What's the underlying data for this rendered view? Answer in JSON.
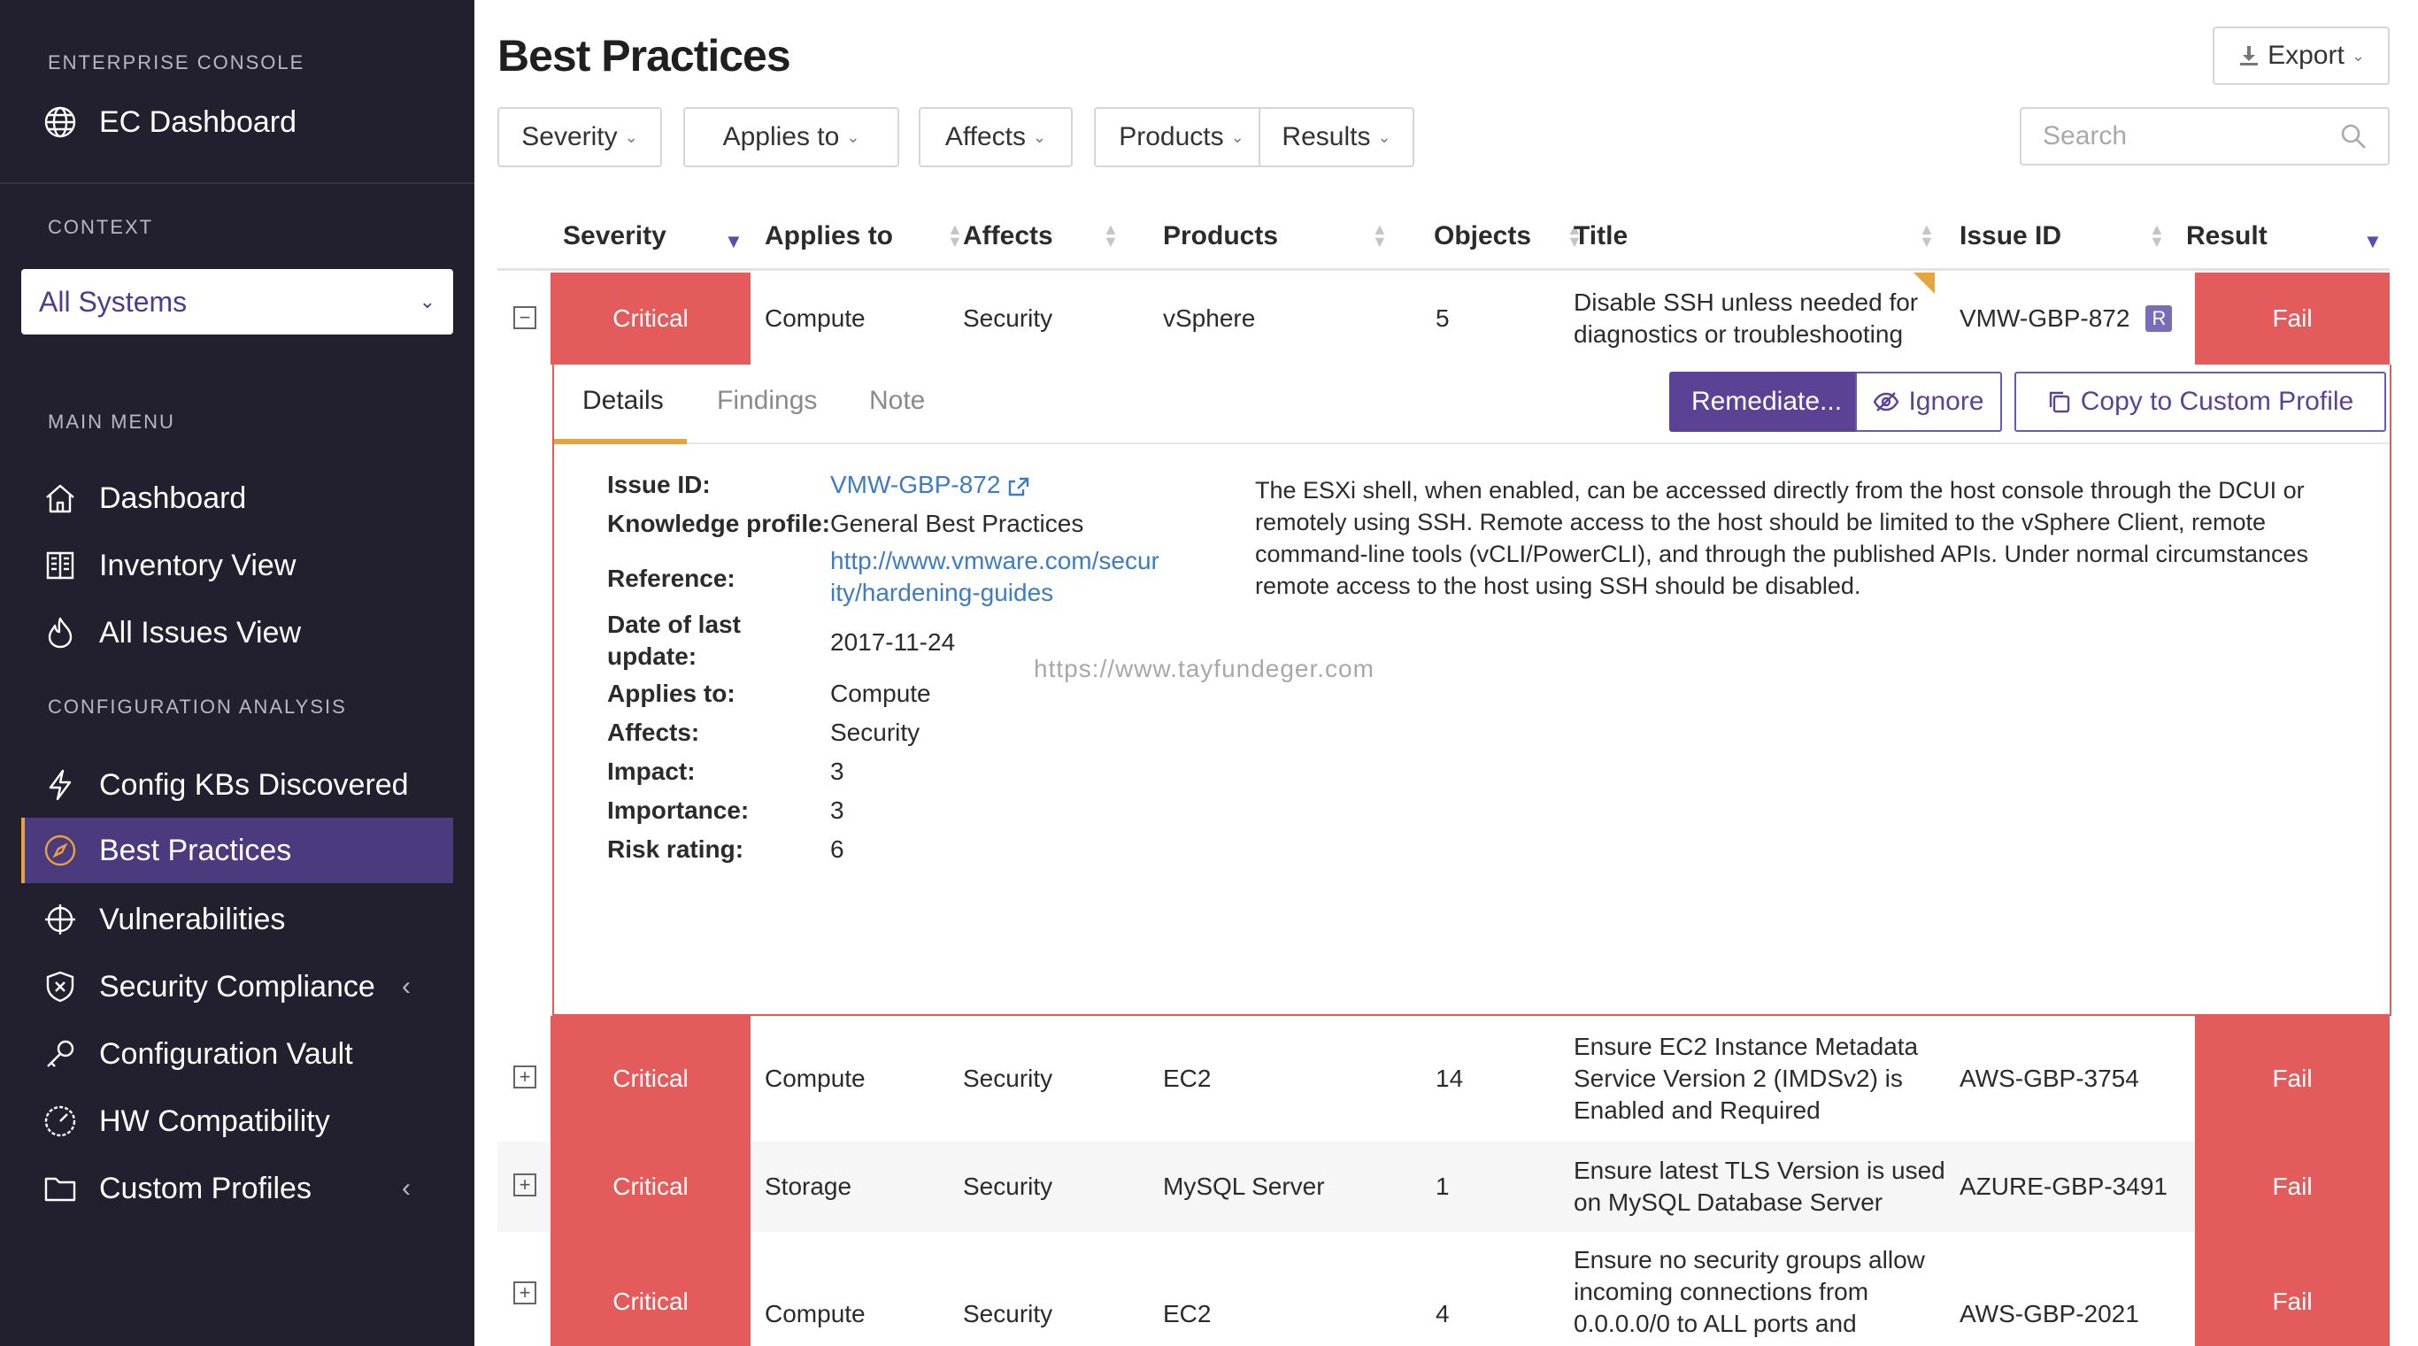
{
  "sidebar": {
    "enterprise_label": "ENTERPRISE CONSOLE",
    "ec_dashboard": "EC Dashboard",
    "context_label": "CONTEXT",
    "context_value": "All Systems",
    "main_menu_label": "MAIN MENU",
    "config_analysis_label": "CONFIGURATION ANALYSIS",
    "items": [
      {
        "label": "Dashboard",
        "icon": "home-icon"
      },
      {
        "label": "Inventory View",
        "icon": "inventory-icon"
      },
      {
        "label": "All Issues View",
        "icon": "flame-icon"
      },
      {
        "label": "Config KBs Discovered",
        "icon": "bolt-icon"
      },
      {
        "label": "Best Practices",
        "icon": "compass-icon",
        "active": true
      },
      {
        "label": "Vulnerabilities",
        "icon": "crosshair-icon"
      },
      {
        "label": "Security Compliance",
        "icon": "shield-icon"
      },
      {
        "label": "Configuration Vault",
        "icon": "key-icon"
      },
      {
        "label": "HW Compatibility",
        "icon": "gauge-icon"
      },
      {
        "label": "Custom Profiles",
        "icon": "folder-icon"
      }
    ]
  },
  "header": {
    "title": "Best Practices",
    "export_label": "Export",
    "search_placeholder": "Search",
    "filters": [
      "Severity",
      "Applies to",
      "Affects",
      "Products",
      "Results"
    ]
  },
  "table": {
    "columns": [
      "Severity",
      "Applies to",
      "Affects",
      "Products",
      "Objects",
      "Title",
      "Issue ID",
      "Result"
    ],
    "rows": [
      {
        "severity": "Critical",
        "applies_to": "Compute",
        "affects": "Security",
        "product": "vSphere",
        "objects": "5",
        "title_lines": [
          "Disable SSH unless needed for",
          "diagnostics or troubleshooting"
        ],
        "issue_id": "VMW-GBP-872",
        "badge": "R",
        "result": "Fail",
        "expanded": true
      },
      {
        "severity": "Critical",
        "applies_to": "Compute",
        "affects": "Security",
        "product": "EC2",
        "objects": "14",
        "title_lines": [
          "Ensure EC2 Instance Metadata",
          "Service Version 2 (IMDSv2) is",
          "Enabled and Required"
        ],
        "issue_id": "AWS-GBP-3754",
        "result": "Fail"
      },
      {
        "severity": "Critical",
        "applies_to": "Storage",
        "affects": "Security",
        "product": "MySQL Server",
        "objects": "1",
        "title_lines": [
          "Ensure latest TLS Version is used",
          "on MySQL Database Server"
        ],
        "issue_id": "AZURE-GBP-3491",
        "result": "Fail"
      },
      {
        "severity": "Critical",
        "applies_to": "Compute",
        "affects": "Security",
        "product": "EC2",
        "objects": "4",
        "title_lines": [
          "Ensure no security groups allow",
          "incoming connections from",
          "0.0.0.0/0 to ALL ports and"
        ],
        "issue_id": "AWS-GBP-2021",
        "result": "Fail"
      }
    ]
  },
  "detail": {
    "tabs": [
      "Details",
      "Findings",
      "Note"
    ],
    "remediate_label": "Remediate...",
    "ignore_label": "Ignore",
    "copy_label": "Copy to Custom Profile",
    "fields": {
      "issue_id_label": "Issue ID:",
      "issue_id_value": "VMW-GBP-872",
      "knowledge_label": "Knowledge profile:",
      "knowledge_value": "General Best Practices",
      "reference_label": "Reference:",
      "reference_line1": "http://www.vmware.com/secur",
      "reference_line2": "ity/hardening-guides",
      "date_label_1": "Date of last",
      "date_label_2": "update:",
      "date_value": "2017-11-24",
      "applies_label": "Applies to:",
      "applies_value": "Compute",
      "affects_label": "Affects:",
      "affects_value": "Security",
      "impact_label": "Impact:",
      "impact_value": "3",
      "importance_label": "Importance:",
      "importance_value": "3",
      "risk_label": "Risk rating:",
      "risk_value": "6"
    },
    "description": "The ESXi shell, when enabled, can be accessed directly from the host console through the DCUI or remotely using SSH. Remote access to the host should be limited to the vSphere Client, remote command-line tools (vCLI/PowerCLI), and through the published APIs. Under normal circumstances remote access to the host using SSH should be disabled.",
    "watermark": "https://www.tayfundeger.com"
  },
  "colors": {
    "sidebar_bg": "#22202f",
    "active_bg": "#4b3b7e",
    "accent": "#e8a33d",
    "critical": "#e35b5b",
    "primary": "#5b4295"
  }
}
